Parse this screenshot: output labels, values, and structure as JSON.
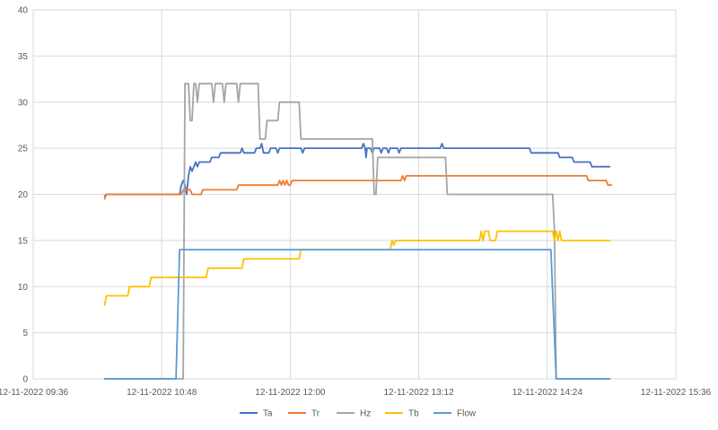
{
  "chart_data": {
    "type": "line",
    "title": "",
    "xlabel": "",
    "ylabel": "",
    "ylim": [
      0,
      40
    ],
    "yticks": [
      0,
      5,
      10,
      15,
      20,
      25,
      30,
      35,
      40
    ],
    "xlim_minutes": [
      576,
      936
    ],
    "xticks": [
      {
        "t": 576,
        "label": "12-11-2022 09:36"
      },
      {
        "t": 648,
        "label": "12-11-2022 10:48"
      },
      {
        "t": 720,
        "label": "12-11-2022 12:00"
      },
      {
        "t": 792,
        "label": "12-11-2022 13:12"
      },
      {
        "t": 864,
        "label": "12-11-2022 14:24"
      },
      {
        "t": 936,
        "label": "12-11-2022 15:36"
      }
    ],
    "x_units": "minutes since 00:00 on 12-11-2022",
    "grid": true,
    "legend_position": "bottom",
    "series": [
      {
        "name": "Ta",
        "color": "#4472C4",
        "points": [
          [
            616,
            19.8
          ],
          [
            617,
            20
          ],
          [
            658,
            20
          ],
          [
            659,
            21
          ],
          [
            660,
            21.5
          ],
          [
            661,
            21
          ],
          [
            662,
            20
          ],
          [
            663,
            22
          ],
          [
            664,
            23
          ],
          [
            665,
            22.5
          ],
          [
            666,
            23
          ],
          [
            667,
            23.5
          ],
          [
            668,
            23
          ],
          [
            669,
            23.5
          ],
          [
            675,
            23.5
          ],
          [
            676,
            24
          ],
          [
            680,
            24
          ],
          [
            681,
            24.5
          ],
          [
            692,
            24.5
          ],
          [
            693,
            25
          ],
          [
            694,
            24.5
          ],
          [
            700,
            24.5
          ],
          [
            701,
            25
          ],
          [
            703,
            25
          ],
          [
            704,
            25.5
          ],
          [
            705,
            24.5
          ],
          [
            708,
            24.5
          ],
          [
            709,
            25
          ],
          [
            712,
            25
          ],
          [
            713,
            24.5
          ],
          [
            714,
            25
          ],
          [
            726,
            25
          ],
          [
            727,
            24.5
          ],
          [
            728,
            25
          ],
          [
            760,
            25
          ],
          [
            761,
            25.5
          ],
          [
            762,
            25
          ],
          [
            762.5,
            24
          ],
          [
            763,
            25
          ],
          [
            765,
            25
          ],
          [
            766,
            24.5
          ],
          [
            767,
            25
          ],
          [
            770,
            25
          ],
          [
            771,
            24.5
          ],
          [
            772,
            25
          ],
          [
            774,
            25
          ],
          [
            775,
            24.5
          ],
          [
            776,
            25
          ],
          [
            780,
            25
          ],
          [
            781,
            24.5
          ],
          [
            782,
            25
          ],
          [
            804,
            25
          ],
          [
            805,
            25.5
          ],
          [
            806,
            25
          ],
          [
            854,
            25
          ],
          [
            855,
            24.5
          ],
          [
            870,
            24.5
          ],
          [
            871,
            24
          ],
          [
            878,
            24
          ],
          [
            879,
            23.5
          ],
          [
            888,
            23.5
          ],
          [
            889,
            23
          ],
          [
            899,
            23
          ]
        ]
      },
      {
        "name": "Tr",
        "color": "#ED7D31",
        "points": [
          [
            616,
            19.5
          ],
          [
            617,
            20
          ],
          [
            659,
            20
          ],
          [
            660,
            20.5
          ],
          [
            664,
            20.5
          ],
          [
            665,
            20
          ],
          [
            670,
            20
          ],
          [
            671,
            20.5
          ],
          [
            690,
            20.5
          ],
          [
            691,
            21
          ],
          [
            713,
            21
          ],
          [
            714,
            21.5
          ],
          [
            715,
            21
          ],
          [
            716,
            21.5
          ],
          [
            717,
            21
          ],
          [
            718,
            21.5
          ],
          [
            719,
            21
          ],
          [
            720,
            21
          ],
          [
            721,
            21.5
          ],
          [
            782,
            21.5
          ],
          [
            783,
            22
          ],
          [
            784,
            21.5
          ],
          [
            785,
            22
          ],
          [
            854,
            22
          ],
          [
            886,
            22
          ],
          [
            887,
            21.5
          ],
          [
            897,
            21.5
          ],
          [
            898,
            21
          ],
          [
            900,
            21
          ]
        ]
      },
      {
        "name": "Hz",
        "color": "#A5A5A5",
        "points": [
          [
            616,
            0
          ],
          [
            656,
            0
          ],
          [
            658,
            0
          ],
          [
            660,
            0
          ],
          [
            661,
            32
          ],
          [
            663,
            32
          ],
          [
            664,
            28
          ],
          [
            665,
            28
          ],
          [
            666,
            32
          ],
          [
            667,
            32
          ],
          [
            668,
            30
          ],
          [
            669,
            32
          ],
          [
            676,
            32
          ],
          [
            677,
            30
          ],
          [
            678,
            32
          ],
          [
            682,
            32
          ],
          [
            683,
            30
          ],
          [
            684,
            32
          ],
          [
            690,
            32
          ],
          [
            691,
            30
          ],
          [
            692,
            32
          ],
          [
            702,
            32
          ],
          [
            703,
            26
          ],
          [
            706,
            26
          ],
          [
            707,
            28
          ],
          [
            713,
            28
          ],
          [
            714,
            30
          ],
          [
            725,
            30
          ],
          [
            726,
            26
          ],
          [
            766,
            26
          ],
          [
            767,
            20
          ],
          [
            768,
            20
          ],
          [
            769,
            24
          ],
          [
            807,
            24
          ],
          [
            808,
            20
          ],
          [
            867,
            20
          ],
          [
            868,
            16
          ],
          [
            869,
            0
          ],
          [
            899,
            0
          ]
        ]
      },
      {
        "name": "Tb",
        "color": "#FFC000",
        "points": [
          [
            616,
            8
          ],
          [
            617,
            9
          ],
          [
            629,
            9
          ],
          [
            630,
            10
          ],
          [
            641,
            10
          ],
          [
            642,
            11
          ],
          [
            673,
            11
          ],
          [
            674,
            12
          ],
          [
            693,
            12
          ],
          [
            694,
            13
          ],
          [
            725,
            13
          ],
          [
            726,
            14
          ],
          [
            776,
            14
          ],
          [
            777,
            15
          ],
          [
            778,
            14.5
          ],
          [
            779,
            15
          ],
          [
            826,
            15
          ],
          [
            827,
            16
          ],
          [
            828,
            15
          ],
          [
            829,
            16
          ],
          [
            831,
            16
          ],
          [
            832,
            15
          ],
          [
            835,
            15
          ],
          [
            836,
            16
          ],
          [
            867,
            16
          ],
          [
            868,
            15
          ],
          [
            869,
            16
          ],
          [
            870,
            15
          ],
          [
            871,
            16
          ],
          [
            872,
            15
          ],
          [
            899,
            15
          ]
        ]
      },
      {
        "name": "Flow",
        "color": "#5B9BD5",
        "points": [
          [
            616,
            0
          ],
          [
            656,
            0
          ],
          [
            658,
            14
          ],
          [
            866,
            14
          ],
          [
            869,
            0
          ],
          [
            899,
            0
          ]
        ]
      }
    ]
  }
}
